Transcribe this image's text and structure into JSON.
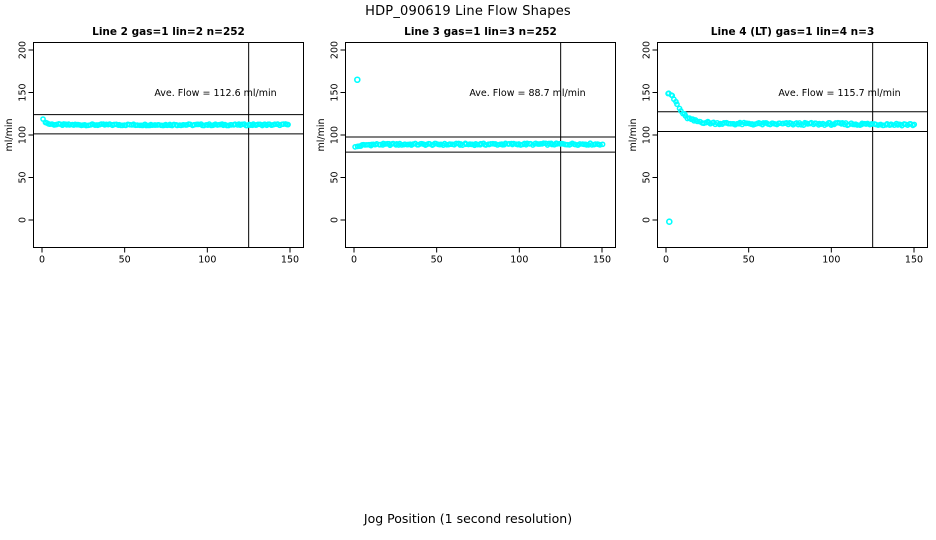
{
  "figure": {
    "title": "HDP_090619  Line Flow Shapes",
    "xlabel": "Jog Position (1 second resolution)",
    "background": "#ffffff",
    "axis_color": "#000000"
  },
  "chart_data": [
    {
      "type": "scatter",
      "title": "Line 2 gas=1 lin=2 n=252",
      "annotation": "Ave. Flow =  112.6  ml/min",
      "ave_flow": 112.6,
      "ylabel": "ml/min",
      "x_ticks": [
        0,
        50,
        100,
        150
      ],
      "y_ticks": [
        0,
        50,
        100,
        150,
        200
      ],
      "xlim": [
        -6,
        157
      ],
      "ylim": [
        -12,
        212
      ],
      "h_lines": [
        123.9,
        101.3
      ],
      "v_line": 125,
      "point_color": "#00FFFF",
      "jitter": 0.9,
      "anchors": [
        [
          1,
          118
        ],
        [
          2,
          115.5
        ],
        [
          3,
          114
        ],
        [
          5,
          112.8
        ],
        [
          8,
          112.3
        ],
        [
          15,
          112
        ],
        [
          30,
          112
        ],
        [
          60,
          112
        ],
        [
          100,
          112
        ],
        [
          130,
          112
        ],
        [
          149,
          112.2
        ]
      ],
      "outliers": []
    },
    {
      "type": "scatter",
      "title": "Line 3 gas=1 lin=3 n=252",
      "annotation": "Ave. Flow =  88.7  ml/min",
      "ave_flow": 88.7,
      "ylabel": "ml/min",
      "x_ticks": [
        0,
        50,
        100,
        150
      ],
      "y_ticks": [
        0,
        50,
        100,
        150,
        200
      ],
      "xlim": [
        -6,
        157
      ],
      "ylim": [
        -12,
        212
      ],
      "h_lines": [
        97.6,
        79.8
      ],
      "v_line": 125,
      "point_color": "#00FFFF",
      "jitter": 1.1,
      "anchors": [
        [
          1,
          85.5
        ],
        [
          2,
          86.5
        ],
        [
          4,
          87.5
        ],
        [
          7,
          88.3
        ],
        [
          12,
          88.8
        ],
        [
          25,
          89
        ],
        [
          60,
          89
        ],
        [
          100,
          89.2
        ],
        [
          130,
          89.3
        ],
        [
          150,
          89.3
        ]
      ],
      "outliers": [
        [
          2,
          165
        ]
      ]
    },
    {
      "type": "scatter",
      "title": "Line 4 (LT) gas=1 lin=4 n=3",
      "annotation": "Ave. Flow =  115.7  ml/min",
      "ave_flow": 115.7,
      "ylabel": "ml/min",
      "x_ticks": [
        0,
        50,
        100,
        150
      ],
      "y_ticks": [
        0,
        50,
        100,
        150,
        200
      ],
      "xlim": [
        -6,
        157
      ],
      "ylim": [
        -12,
        212
      ],
      "h_lines": [
        127.3,
        104.1
      ],
      "v_line": 125,
      "point_color": "#00FFFF",
      "jitter": 1.5,
      "anchors": [
        [
          1,
          150
        ],
        [
          2,
          149.5
        ],
        [
          3,
          147.5
        ],
        [
          4,
          145
        ],
        [
          5,
          142
        ],
        [
          6,
          139
        ],
        [
          7,
          136
        ],
        [
          8,
          131
        ],
        [
          9,
          128
        ],
        [
          10,
          125.5
        ],
        [
          11,
          123.5
        ],
        [
          12,
          121.5
        ],
        [
          13,
          120.3
        ],
        [
          14,
          119.2
        ],
        [
          15,
          118
        ],
        [
          17,
          116.8
        ],
        [
          19,
          116
        ],
        [
          21,
          115.5
        ],
        [
          24,
          114.8
        ],
        [
          27,
          114.3
        ],
        [
          30,
          114
        ],
        [
          35,
          113.6
        ],
        [
          45,
          113.2
        ],
        [
          60,
          113
        ],
        [
          80,
          113
        ],
        [
          100,
          113
        ],
        [
          120,
          112.8
        ],
        [
          135,
          112.6
        ],
        [
          150,
          112.3
        ]
      ],
      "outliers": [
        [
          2,
          -2
        ]
      ]
    }
  ]
}
